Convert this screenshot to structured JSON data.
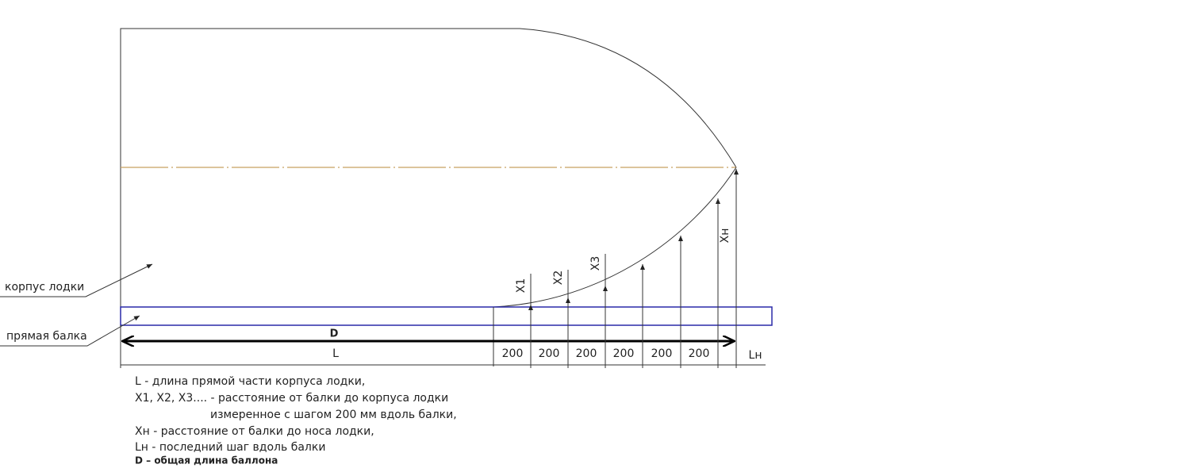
{
  "labels": {
    "hull": "корпус лодки",
    "beam": "прямая балка"
  },
  "dimensions": {
    "total": "D",
    "straight": "L",
    "steps": [
      "200",
      "200",
      "200",
      "200",
      "200",
      "200"
    ],
    "last_step": "Lн"
  },
  "offsets": [
    "X1",
    "X2",
    "X3",
    "Xн"
  ],
  "legend": [
    "L - длина прямой части корпуса лодки,",
    "X1, X2, X3.... - расстояние от балки до корпуса лодки",
    "измеренное с шагом 200 мм вдоль балки,",
    "Xн - расстояние от балки до носа лодки,",
    "Lн - последний шаг вдоль балки",
    "D – общая длина баллона"
  ]
}
